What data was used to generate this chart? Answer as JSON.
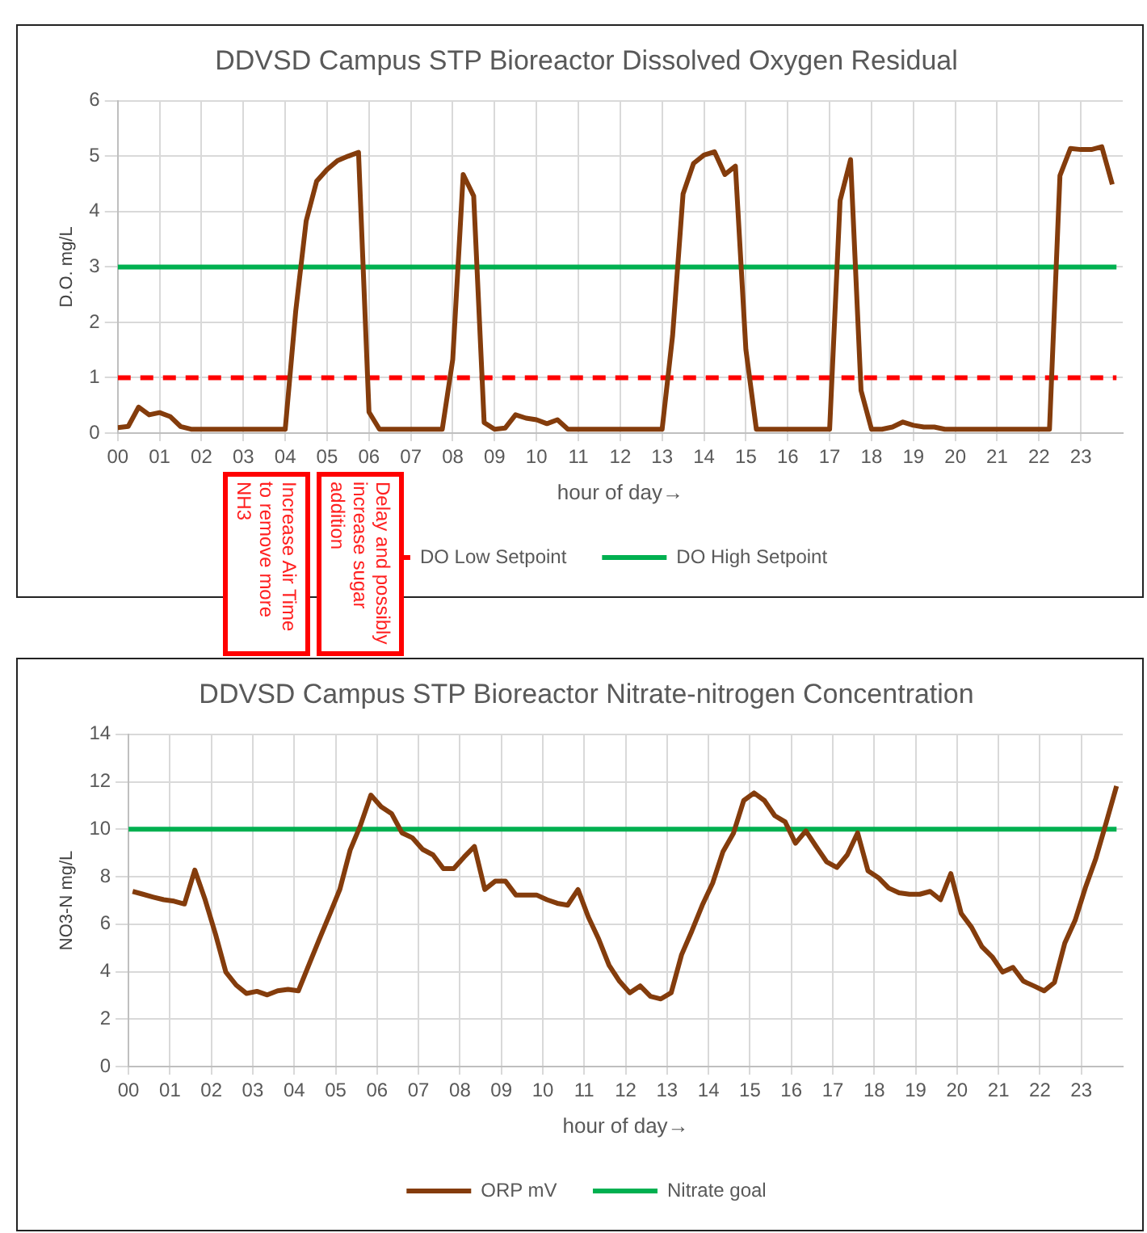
{
  "chart_data": [
    {
      "type": "line",
      "title": "DDVSD Campus STP Bioreactor Dissolved Oxygen Residual",
      "xlabel": "hour of day→",
      "ylabel": "D.O. mg/L",
      "xlim": [
        0,
        24
      ],
      "xticks": [
        {
          "value": 0,
          "label": "00"
        },
        {
          "value": 1,
          "label": "01"
        },
        {
          "value": 2,
          "label": "02"
        },
        {
          "value": 3,
          "label": "03"
        },
        {
          "value": 4,
          "label": "04"
        },
        {
          "value": 5,
          "label": "05"
        },
        {
          "value": 6,
          "label": "06"
        },
        {
          "value": 7,
          "label": "07"
        },
        {
          "value": 8,
          "label": "08"
        },
        {
          "value": 9,
          "label": "09"
        },
        {
          "value": 10,
          "label": "10"
        },
        {
          "value": 11,
          "label": "11"
        },
        {
          "value": 12,
          "label": "12"
        },
        {
          "value": 13,
          "label": "13"
        },
        {
          "value": 14,
          "label": "14"
        },
        {
          "value": 15,
          "label": "15"
        },
        {
          "value": 16,
          "label": "16"
        },
        {
          "value": 17,
          "label": "17"
        },
        {
          "value": 18,
          "label": "18"
        },
        {
          "value": 19,
          "label": "19"
        },
        {
          "value": 20,
          "label": "20"
        },
        {
          "value": 21,
          "label": "21"
        },
        {
          "value": 22,
          "label": "22"
        },
        {
          "value": 23,
          "label": "23"
        }
      ],
      "ylim": [
        0,
        6
      ],
      "yticks": [
        0,
        1,
        2,
        3,
        4,
        5,
        6
      ],
      "grid": true,
      "legend": "bottom",
      "marker": "none",
      "series": [
        {
          "color": "#843c0c",
          "line_style": "solid",
          "x": [
            0,
            0.25,
            0.5,
            0.75,
            1,
            1.25,
            1.5,
            1.75,
            4,
            4.25,
            4.5,
            4.75,
            5,
            5.25,
            5.5,
            5.75,
            6,
            6.25,
            7.75,
            8,
            8.25,
            8.5,
            8.75,
            9,
            9.25,
            9.5,
            9.75,
            10,
            10.25,
            10.5,
            10.75,
            13,
            13.25,
            13.5,
            13.75,
            14,
            14.25,
            14.5,
            14.75,
            15,
            15.25,
            17,
            17.25,
            17.5,
            17.75,
            18,
            18.25,
            18.5,
            18.75,
            19,
            19.25,
            19.5,
            19.75,
            22.25,
            22.5,
            22.75,
            23,
            23.25,
            23.5,
            23.75
          ],
          "values": [
            0.1,
            0.12,
            0.47,
            0.33,
            0.37,
            0.3,
            0.12,
            0.07,
            0.07,
            2.2,
            3.83,
            4.55,
            4.76,
            4.92,
            5.0,
            5.07,
            0.38,
            0.07,
            0.07,
            1.33,
            4.67,
            4.28,
            0.19,
            0.07,
            0.09,
            0.33,
            0.27,
            0.24,
            0.17,
            0.24,
            0.07,
            0.07,
            1.76,
            4.32,
            4.87,
            5.02,
            5.08,
            4.67,
            4.82,
            1.51,
            0.07,
            0.07,
            4.2,
            4.94,
            0.77,
            0.07,
            0.07,
            0.11,
            0.2,
            0.14,
            0.11,
            0.11,
            0.07,
            0.07,
            4.65,
            5.14,
            5.12,
            5.12,
            5.17,
            4.49
          ]
        },
        {
          "name": "DO Low Setpoint",
          "color": "#ff0000",
          "line_style": "dashed",
          "x": [
            0,
            23.85
          ],
          "values": [
            1,
            1
          ]
        },
        {
          "name": "DO High Setpoint",
          "color": "#00b050",
          "line_style": "solid",
          "x": [
            0,
            23.85
          ],
          "values": [
            3,
            3
          ]
        }
      ],
      "annotations": [
        "Increase Air Time to remove more NH3",
        "Delay and possibly increase sugar addition"
      ]
    },
    {
      "type": "line",
      "title": "DDVSD Campus STP Bioreactor Nitrate-nitrogen Concentration",
      "xlabel": "hour of day→",
      "ylabel": "NO3-N mg/L",
      "xlim": [
        0,
        24
      ],
      "xticks": [
        {
          "value": 0,
          "label": "00"
        },
        {
          "value": 1,
          "label": "01"
        },
        {
          "value": 2,
          "label": "02"
        },
        {
          "value": 3,
          "label": "03"
        },
        {
          "value": 4,
          "label": "04"
        },
        {
          "value": 5,
          "label": "05"
        },
        {
          "value": 6,
          "label": "06"
        },
        {
          "value": 7,
          "label": "07"
        },
        {
          "value": 8,
          "label": "08"
        },
        {
          "value": 9,
          "label": "09"
        },
        {
          "value": 10,
          "label": "10"
        },
        {
          "value": 11,
          "label": "11"
        },
        {
          "value": 12,
          "label": "12"
        },
        {
          "value": 13,
          "label": "13"
        },
        {
          "value": 14,
          "label": "14"
        },
        {
          "value": 15,
          "label": "15"
        },
        {
          "value": 16,
          "label": "16"
        },
        {
          "value": 17,
          "label": "17"
        },
        {
          "value": 18,
          "label": "18"
        },
        {
          "value": 19,
          "label": "19"
        },
        {
          "value": 20,
          "label": "20"
        },
        {
          "value": 21,
          "label": "21"
        },
        {
          "value": 22,
          "label": "22"
        },
        {
          "value": 23,
          "label": "23"
        }
      ],
      "ylim": [
        0,
        14
      ],
      "yticks": [
        0,
        2,
        4,
        6,
        8,
        10,
        12,
        14
      ],
      "grid": true,
      "legend": "bottom",
      "marker": "none",
      "series": [
        {
          "name": "ORP mV",
          "color": "#843c0c",
          "line_style": "solid",
          "x": [
            0.1,
            0.35,
            0.6,
            0.85,
            1.1,
            1.35,
            1.6,
            1.85,
            2.1,
            2.35,
            2.6,
            2.85,
            3.1,
            3.35,
            3.6,
            3.85,
            4.1,
            4.35,
            4.6,
            4.85,
            5.1,
            5.35,
            5.6,
            5.85,
            6.1,
            6.35,
            6.6,
            6.85,
            7.1,
            7.35,
            7.6,
            7.85,
            8.1,
            8.35,
            8.6,
            8.85,
            9.1,
            9.35,
            9.6,
            9.85,
            10.1,
            10.35,
            10.6,
            10.85,
            11.1,
            11.35,
            11.6,
            11.85,
            12.1,
            12.35,
            12.6,
            12.85,
            13.1,
            13.35,
            13.6,
            13.85,
            14.1,
            14.35,
            14.6,
            14.85,
            15.1,
            15.35,
            15.6,
            15.85,
            16.1,
            16.35,
            16.6,
            16.85,
            17.1,
            17.35,
            17.6,
            17.85,
            18.1,
            18.35,
            18.6,
            18.85,
            19.1,
            19.35,
            19.6,
            19.85,
            20.1,
            20.35,
            20.6,
            20.85,
            21.1,
            21.35,
            21.6,
            21.85,
            22.1,
            22.35,
            22.6,
            22.85,
            23.1,
            23.35,
            23.6,
            23.85
          ],
          "values": [
            7.38,
            7.26,
            7.14,
            7.03,
            6.97,
            6.85,
            8.28,
            7.03,
            5.58,
            3.98,
            3.43,
            3.08,
            3.17,
            3.02,
            3.19,
            3.25,
            3.19,
            4.27,
            5.34,
            6.39,
            7.46,
            9.12,
            10.17,
            11.44,
            10.95,
            10.66,
            9.85,
            9.64,
            9.15,
            8.92,
            8.34,
            8.34,
            8.83,
            9.27,
            7.46,
            7.81,
            7.81,
            7.23,
            7.23,
            7.23,
            7.03,
            6.88,
            6.8,
            7.46,
            6.3,
            5.37,
            4.27,
            3.6,
            3.11,
            3.4,
            2.96,
            2.85,
            3.11,
            4.71,
            5.72,
            6.8,
            7.73,
            9.06,
            9.82,
            11.21,
            11.53,
            11.21,
            10.57,
            10.31,
            9.41,
            9.93,
            9.27,
            8.63,
            8.39,
            8.92,
            9.85,
            8.25,
            7.96,
            7.52,
            7.32,
            7.26,
            7.26,
            7.38,
            7.03,
            8.13,
            6.45,
            5.87,
            5.05,
            4.62,
            3.98,
            4.18,
            3.6,
            3.4,
            3.19,
            3.54,
            5.2,
            6.16,
            7.55,
            8.77,
            10.28,
            11.82
          ]
        },
        {
          "name": "Nitrate goal",
          "color": "#00b050",
          "line_style": "solid",
          "x": [
            0,
            23.85
          ],
          "values": [
            10,
            10
          ]
        }
      ]
    }
  ]
}
